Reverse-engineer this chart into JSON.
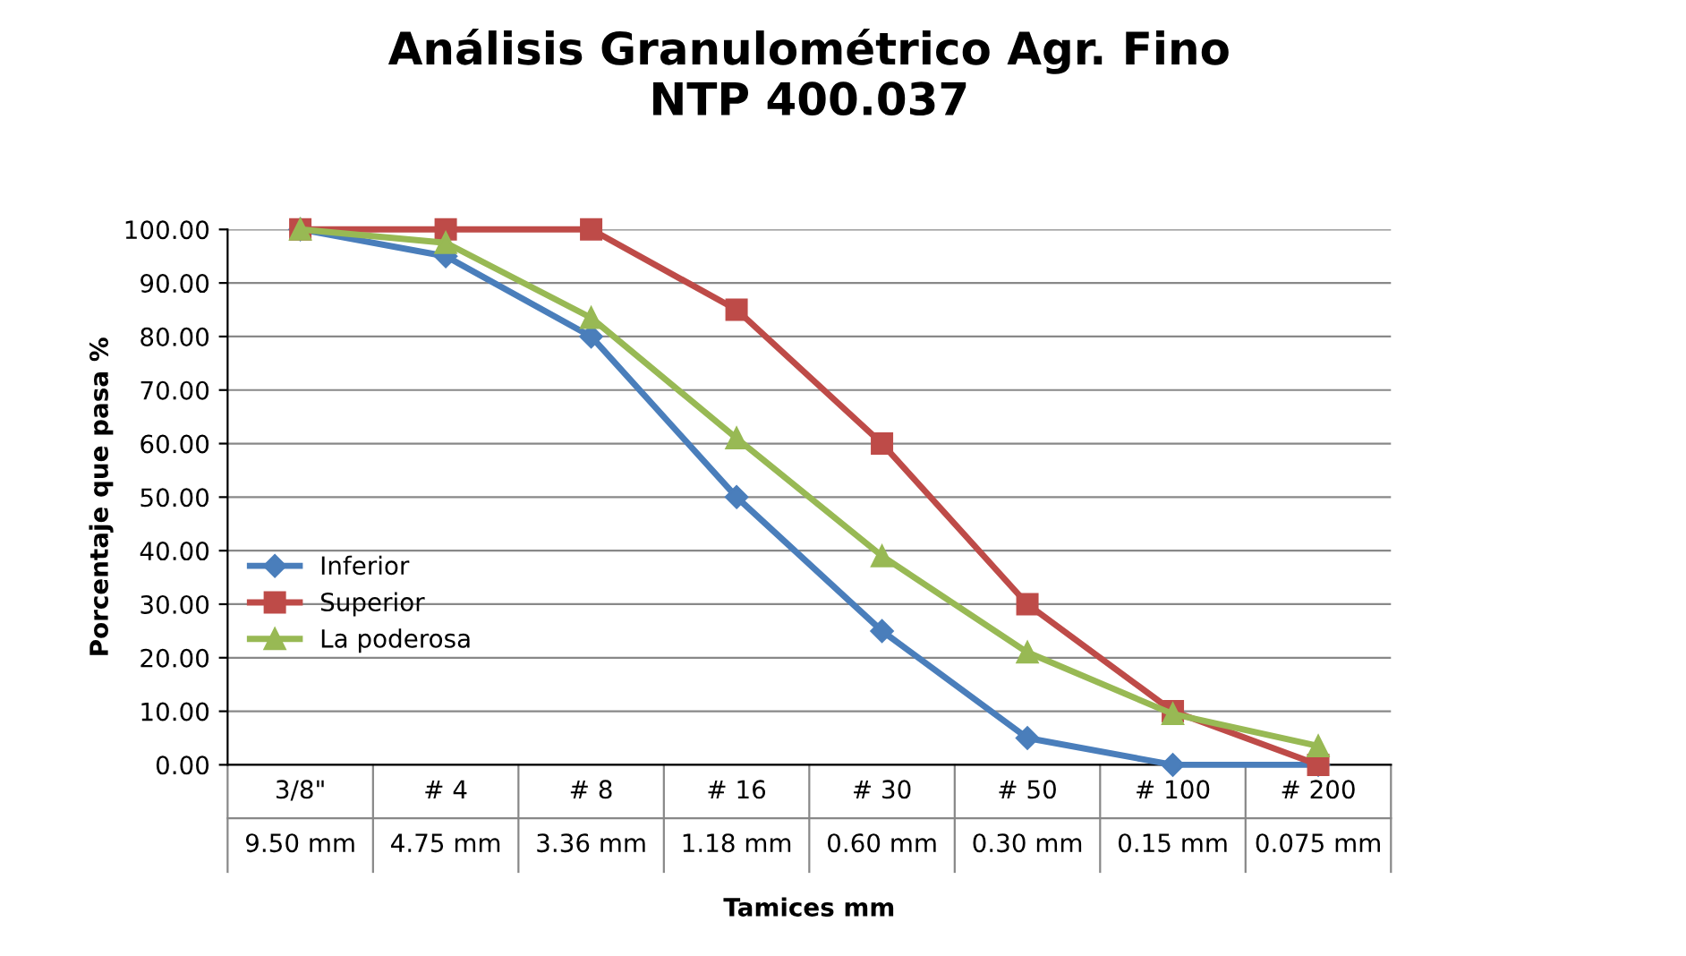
{
  "chart_data": {
    "type": "line",
    "title": "Análisis Granulométrico Agr. Fino\nNTP 400.037",
    "xlabel": "Tamices mm",
    "ylabel": "Porcentaje que pasa %",
    "categories": [
      "3/8\"\n9.50 mm",
      "# 4\n4.75 mm",
      "# 8\n3.36 mm",
      "# 16\n1.18 mm",
      "# 30\n0.60 mm",
      "# 50\n0.30 mm",
      "# 100\n0.15 mm",
      "# 200\n0.075 mm"
    ],
    "series": [
      {
        "name": "Inferior",
        "color": "#4a7ebb",
        "marker": "diamond",
        "values": [
          100,
          95,
          80,
          50,
          25,
          5,
          0,
          0
        ]
      },
      {
        "name": "Superior",
        "color": "#be4b48",
        "marker": "square",
        "values": [
          100,
          100,
          100,
          85,
          60,
          30,
          10,
          0
        ]
      },
      {
        "name": "La poderosa",
        "color": "#98b954",
        "marker": "triangle",
        "values": [
          100,
          97.5,
          83.5,
          61,
          39,
          21,
          9.5,
          3.5
        ]
      }
    ],
    "ylim": [
      0,
      100
    ],
    "yticks": [
      {
        "value": 0,
        "label": "0.00"
      },
      {
        "value": 10,
        "label": "10.00"
      },
      {
        "value": 20,
        "label": "20.00"
      },
      {
        "value": 30,
        "label": "30.00"
      },
      {
        "value": 40,
        "label": "40.00"
      },
      {
        "value": 50,
        "label": "50.00"
      },
      {
        "value": 60,
        "label": "60.00"
      },
      {
        "value": 70,
        "label": "70.00"
      },
      {
        "value": 80,
        "label": "80.00"
      },
      {
        "value": 90,
        "label": "90.00"
      },
      {
        "value": 100,
        "label": "100.00"
      }
    ],
    "grid": "y",
    "legend": "left",
    "line_style": "solid"
  }
}
